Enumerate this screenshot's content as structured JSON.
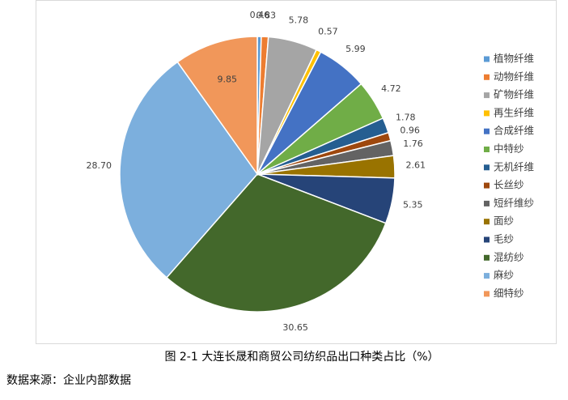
{
  "chart_data": {
    "type": "pie",
    "title": "图 2-1  大连长晟和商贸公司纺织品出口种类占比（%）",
    "source": "数据来源：企业内部数据",
    "categories": [
      "植物纤维",
      "动物纤维",
      "矿物纤维",
      "再生纤维",
      "合成纤维",
      "中特纱",
      "无机纤维",
      "长丝纱",
      "短纤维纱",
      "面纱",
      "毛纱",
      "混纺纱",
      "麻纱",
      "细特纱"
    ],
    "values": [
      0.46,
      0.83,
      5.78,
      0.57,
      5.99,
      4.72,
      1.78,
      0.96,
      1.76,
      2.61,
      5.35,
      30.65,
      28.7,
      9.85
    ],
    "value_labels": [
      "0.46",
      "0.83",
      "5.78",
      "0.57",
      "5.99",
      "4.72",
      "1.78",
      "0.96",
      "1.76",
      "2.61",
      "5.35",
      "30.65",
      "28.70",
      "9.85"
    ],
    "colors": [
      "#5b9bd5",
      "#ed7d31",
      "#a5a5a5",
      "#ffc000",
      "#4472c4",
      "#70ad47",
      "#255e91",
      "#9e480e",
      "#636363",
      "#997300",
      "#264478",
      "#43682b",
      "#7cafdd",
      "#f1975a"
    ],
    "legend": "right"
  }
}
